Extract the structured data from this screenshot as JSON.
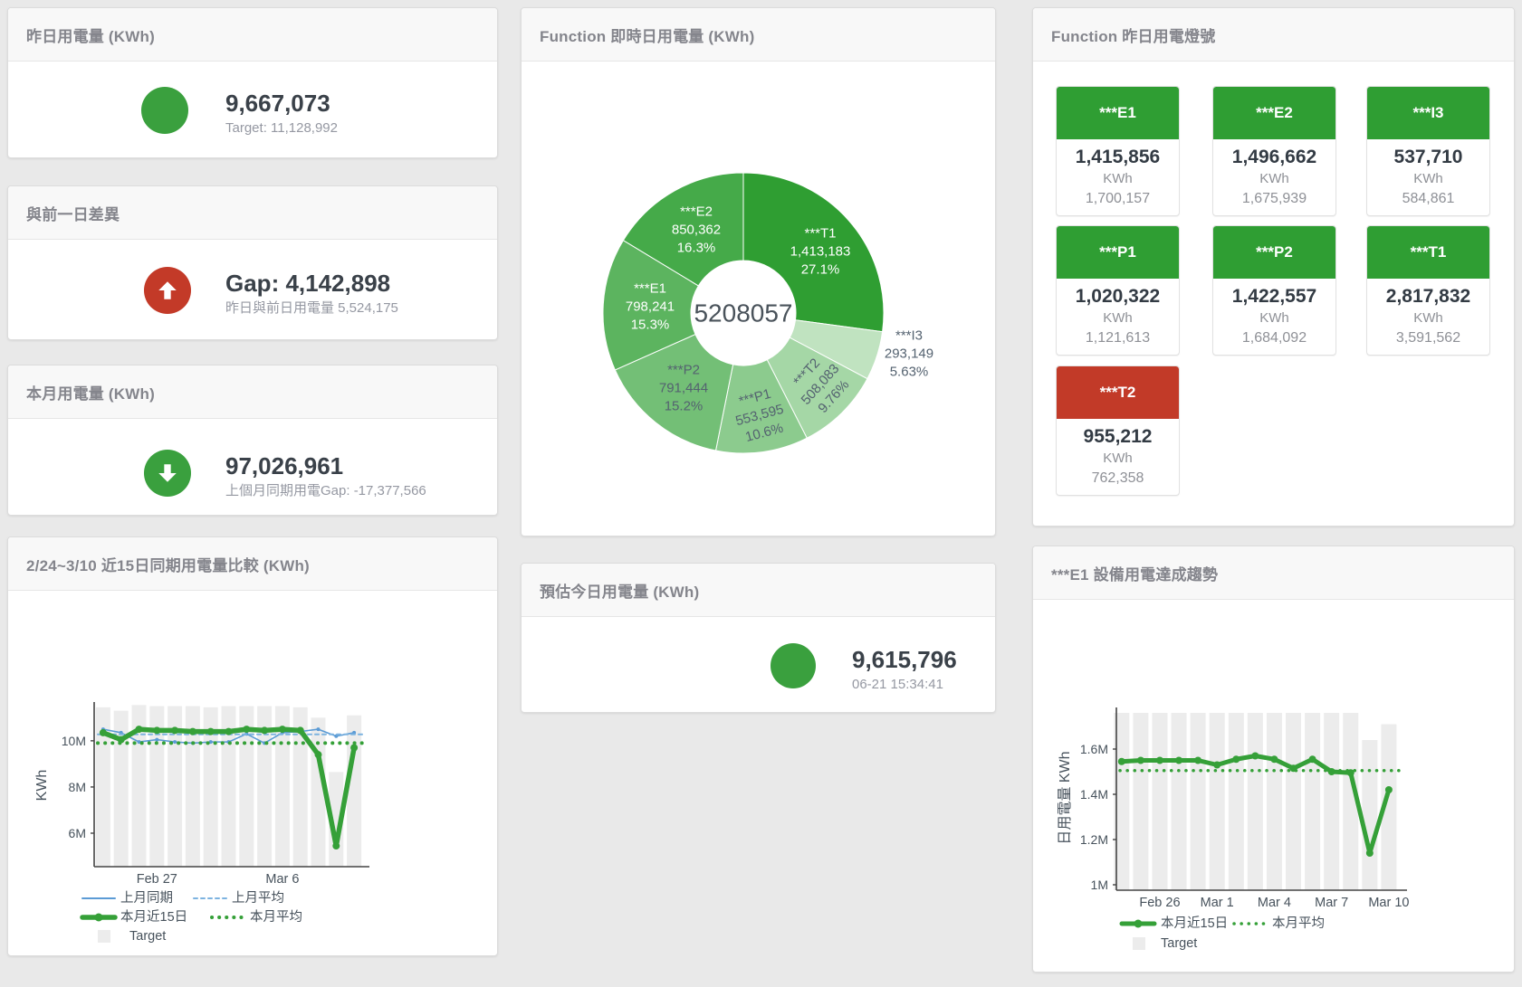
{
  "colors": {
    "green": "#35a038",
    "green_circle": "#3aa03e",
    "red": "#c33a28",
    "tile_green": "#2f9e33",
    "tile_red": "#c23a28",
    "blue": "#5b9bd5",
    "blue_dashed": "#7db3e0",
    "target_bar": "#ececec",
    "axis_text": "#47525c"
  },
  "cards": {
    "yesterday": {
      "title": "昨日用電量 (KWh)",
      "value": "9,667,073",
      "subtitle": "Target: 11,128,992",
      "status": "green"
    },
    "gap": {
      "title": "與前一日差異",
      "value": "Gap: 4,142,898",
      "subtitle": "昨日與前日用電量 5,524,175",
      "status": "red-up"
    },
    "month": {
      "title": "本月用電量 (KWh)",
      "value": "97,026,961",
      "subtitle": "上個月同期用電Gap: -17,377,566",
      "status": "green-down"
    },
    "estimate": {
      "title": "預估今日用電量 (KWh)",
      "value": "9,615,796",
      "subtitle": "06-21 15:34:41",
      "status": "green"
    },
    "compare": {
      "title": "2/24~3/10 近15日同期用電量比較 (KWh)"
    },
    "donut": {
      "title": "Function 即時日用電量 (KWh)"
    },
    "lights": {
      "title": "Function 昨日用電燈號",
      "tiles": [
        {
          "name": "***E1",
          "value": "1,415,856",
          "unit": "KWh",
          "target": "1,700,157",
          "status": "green"
        },
        {
          "name": "***E2",
          "value": "1,496,662",
          "unit": "KWh",
          "target": "1,675,939",
          "status": "green"
        },
        {
          "name": "***I3",
          "value": "537,710",
          "unit": "KWh",
          "target": "584,861",
          "status": "green"
        },
        {
          "name": "***P1",
          "value": "1,020,322",
          "unit": "KWh",
          "target": "1,121,613",
          "status": "green"
        },
        {
          "name": "***P2",
          "value": "1,422,557",
          "unit": "KWh",
          "target": "1,684,092",
          "status": "green"
        },
        {
          "name": "***T1",
          "value": "2,817,832",
          "unit": "KWh",
          "target": "3,591,562",
          "status": "green"
        },
        {
          "name": "***T2",
          "value": "955,212",
          "unit": "KWh",
          "target": "762,358",
          "status": "red"
        }
      ]
    },
    "trend": {
      "title": "***E1 設備用電達成趨勢"
    }
  },
  "chart_data": [
    {
      "id": "realtime_donut",
      "type": "pie",
      "title": "Function 即時日用電量 (KWh)",
      "center_label": "5208057",
      "slices": [
        {
          "name": "***T1",
          "value": 1413183,
          "pct": "27.1%",
          "color": "#2f9e32",
          "label_color": "#ffffff"
        },
        {
          "name": "***I3",
          "value": 293149,
          "pct": "5.63%",
          "color": "#c0e3c0",
          "label_color": "#546270"
        },
        {
          "name": "***T2",
          "value": 508083,
          "pct": "9.76%",
          "color": "#a5d7a6",
          "label_color": "#546270"
        },
        {
          "name": "***P1",
          "value": 553595,
          "pct": "10.6%",
          "color": "#8ccb8e",
          "label_color": "#546270"
        },
        {
          "name": "***P2",
          "value": 791444,
          "pct": "15.2%",
          "color": "#73bf76",
          "label_color": "#546270"
        },
        {
          "name": "***E1",
          "value": 798241,
          "pct": "15.3%",
          "color": "#5cb45f",
          "label_color": "#ffffff"
        },
        {
          "name": "***E2",
          "value": 850362,
          "pct": "16.3%",
          "color": "#45aa49",
          "label_color": "#ffffff"
        }
      ]
    },
    {
      "id": "compare",
      "type": "line+bar",
      "title": "2/24~3/10 近15日同期用電量比較 (KWh)",
      "ylabel": "KWh",
      "ylim": [
        4.55,
        11.6
      ],
      "yticks": [
        {
          "v": 6,
          "label": "6M"
        },
        {
          "v": 8,
          "label": "8M"
        },
        {
          "v": 10,
          "label": "10M"
        }
      ],
      "n_points": 15,
      "x_index_labels": [
        {
          "index": 3,
          "label": "Feb 27"
        },
        {
          "index": 10,
          "label": "Mar 6"
        }
      ],
      "target": {
        "name": "Target",
        "color": "#ececec",
        "values": [
          11.45,
          11.3,
          11.55,
          11.5,
          11.5,
          11.5,
          11.45,
          11.5,
          11.5,
          11.5,
          11.5,
          11.45,
          11.0,
          8.65,
          11.1
        ]
      },
      "series": [
        {
          "name": "上月同期",
          "color": "#5b9bd5",
          "style": "solid",
          "width": 1.6,
          "values": [
            10.5,
            10.35,
            9.95,
            10.05,
            9.95,
            9.9,
            9.95,
            9.95,
            10.3,
            9.9,
            10.35,
            10.4,
            10.5,
            10.2,
            10.35
          ]
        },
        {
          "name": "上月平均",
          "color": "#7db3e0",
          "style": "dashed",
          "width": 2,
          "value": 10.28
        },
        {
          "name": "本月近15日",
          "color": "#35a038",
          "style": "solid",
          "width": 5.5,
          "values": [
            10.35,
            10.05,
            10.5,
            10.45,
            10.45,
            10.4,
            10.4,
            10.4,
            10.5,
            10.45,
            10.5,
            10.45,
            9.4,
            5.45,
            9.7
          ]
        },
        {
          "name": "本月平均",
          "color": "#35a038",
          "style": "dotted",
          "width": 4,
          "value": 9.9
        }
      ]
    },
    {
      "id": "e1_trend",
      "type": "line+bar",
      "title": "***E1 設備用電達成趨勢",
      "ylabel": "日用電量 KWh",
      "ylim": [
        0.976,
        1.776
      ],
      "yticks": [
        {
          "v": 1,
          "label": "1M"
        },
        {
          "v": 1.2,
          "label": "1.2M"
        },
        {
          "v": 1.4,
          "label": "1.4M"
        },
        {
          "v": 1.6,
          "label": "1.6M"
        }
      ],
      "n_points": 15,
      "x_index_labels": [
        {
          "index": 2,
          "label": "Feb 26"
        },
        {
          "index": 5,
          "label": "Mar 1"
        },
        {
          "index": 8,
          "label": "Mar 4"
        },
        {
          "index": 11,
          "label": "Mar 7"
        },
        {
          "index": 14,
          "label": "Mar 10"
        }
      ],
      "target": {
        "name": "Target",
        "color": "#ececec",
        "values": [
          1.76,
          1.76,
          1.76,
          1.76,
          1.76,
          1.76,
          1.76,
          1.76,
          1.76,
          1.76,
          1.76,
          1.76,
          1.76,
          1.64,
          1.71
        ]
      },
      "series": [
        {
          "name": "本月近15日",
          "color": "#35a038",
          "style": "solid",
          "width": 5,
          "values": [
            1.545,
            1.55,
            1.55,
            1.55,
            1.55,
            1.53,
            1.555,
            1.57,
            1.555,
            1.515,
            1.555,
            1.5,
            1.495,
            1.14,
            1.42
          ]
        },
        {
          "name": "本月平均",
          "color": "#35a038",
          "style": "dotted",
          "width": 3.5,
          "value": 1.505
        }
      ]
    }
  ]
}
